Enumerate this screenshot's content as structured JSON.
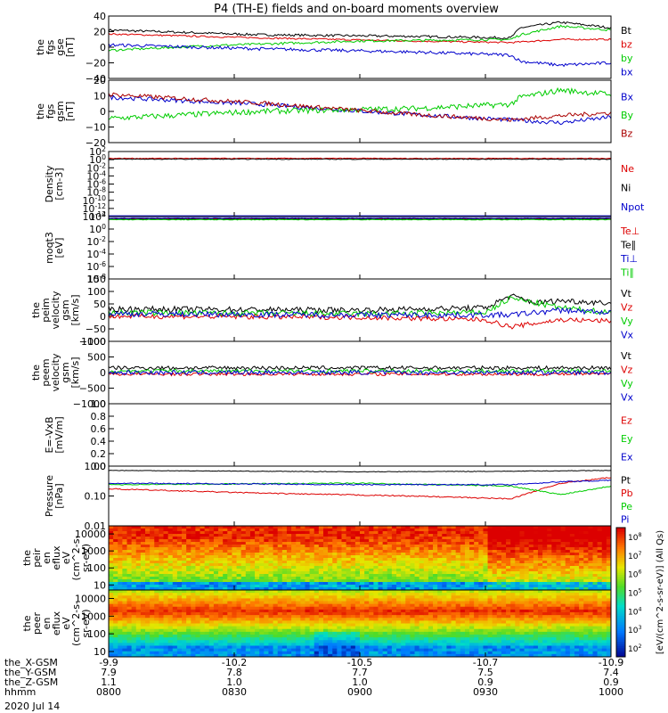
{
  "title": "P4 (TH-E) fields and on-board moments overview",
  "date_label": "2020 Jul 14",
  "colorbar": {
    "label": "[eV/(cm^2-s-sr-eV)] (All Qs)",
    "ticks": [
      "10^8",
      "10^7",
      "10^6",
      "10^5",
      "10^4",
      "10^3",
      "10^2"
    ]
  },
  "x_rows": [
    {
      "name": "the_X-GSM",
      "values": [
        "-9.9",
        "-10.2",
        "-10.5",
        "-10.7",
        "-10.9"
      ]
    },
    {
      "name": "the_Y-GSM",
      "values": [
        "7.9",
        "7.8",
        "7.7",
        "7.5",
        "7.4"
      ]
    },
    {
      "name": "the_Z-GSM",
      "values": [
        "1.1",
        "1.0",
        "1.0",
        "0.9",
        "0.9"
      ]
    },
    {
      "name": "hhmm",
      "values": [
        "0800",
        "0830",
        "0900",
        "0930",
        "1000"
      ]
    }
  ],
  "chart_data": [
    {
      "type": "line",
      "ylabel": [
        "the",
        "fgs",
        "gse",
        "[nT]"
      ],
      "yticks": [
        "40",
        "20",
        "0",
        "−20",
        "−40"
      ],
      "ylim": [
        -40,
        40
      ],
      "series": [
        {
          "name": "Bt",
          "color": "#000000",
          "knots": [
            [
              0,
              22
            ],
            [
              0.3,
              16
            ],
            [
              0.6,
              14
            ],
            [
              0.8,
              12
            ],
            [
              0.82,
              25
            ],
            [
              0.9,
              32
            ],
            [
              1.0,
              25
            ]
          ],
          "noise": 1.5
        },
        {
          "name": "bz",
          "color": "#dd0000",
          "knots": [
            [
              0,
              17
            ],
            [
              0.3,
              12
            ],
            [
              0.6,
              8
            ],
            [
              0.8,
              6
            ],
            [
              0.9,
              10
            ],
            [
              1.0,
              10
            ]
          ],
          "noise": 1
        },
        {
          "name": "by",
          "color": "#00cc00",
          "knots": [
            [
              0,
              -4
            ],
            [
              0.2,
              2
            ],
            [
              0.5,
              8
            ],
            [
              0.8,
              10
            ],
            [
              0.82,
              16
            ],
            [
              0.9,
              27
            ],
            [
              1.0,
              22
            ]
          ],
          "noise": 1.5
        },
        {
          "name": "bx",
          "color": "#0000cc",
          "knots": [
            [
              0,
              3
            ],
            [
              0.3,
              -2
            ],
            [
              0.6,
              -6
            ],
            [
              0.8,
              -10
            ],
            [
              0.82,
              -18
            ],
            [
              0.9,
              -23
            ],
            [
              1.0,
              -20
            ]
          ],
          "noise": 2
        }
      ]
    },
    {
      "type": "line",
      "ylabel": [
        "the",
        "fgs",
        "gsm",
        "[nT]"
      ],
      "yticks": [
        "20",
        "10",
        "0",
        "−10",
        "−20"
      ],
      "ylim": [
        -22,
        22
      ],
      "series": [
        {
          "name": "Bx",
          "color": "#0000cc",
          "knots": [
            [
              0,
              10
            ],
            [
              0.3,
              5
            ],
            [
              0.6,
              -2
            ],
            [
              0.8,
              -6
            ],
            [
              0.9,
              -8
            ],
            [
              1.0,
              -4
            ]
          ],
          "noise": 1.5
        },
        {
          "name": "By",
          "color": "#00cc00",
          "knots": [
            [
              0,
              -5
            ],
            [
              0.3,
              0
            ],
            [
              0.6,
              2
            ],
            [
              0.8,
              5
            ],
            [
              0.82,
              10
            ],
            [
              0.9,
              15
            ],
            [
              1.0,
              12
            ]
          ],
          "noise": 2
        },
        {
          "name": "Bz",
          "color": "#aa0000",
          "knots": [
            [
              0,
              12
            ],
            [
              0.3,
              6
            ],
            [
              0.6,
              -2
            ],
            [
              0.8,
              -6
            ],
            [
              0.9,
              -3
            ],
            [
              1.0,
              -1
            ]
          ],
          "noise": 1.5
        }
      ]
    },
    {
      "type": "line",
      "ylabel": [
        "Density",
        "[cm-3]"
      ],
      "yticks": [
        "10^2",
        "10^0",
        "10^-2",
        "10^-4",
        "10^-6",
        "10^-8",
        "10^-10",
        "10^-12",
        "10^-14"
      ],
      "ylim": [
        -15,
        2
      ],
      "log": true,
      "series": [
        {
          "name": "Ne",
          "color": "#dd0000",
          "knots": [
            [
              0,
              0.2
            ],
            [
              1,
              0.2
            ]
          ],
          "noise": 0.1
        },
        {
          "name": "Ni",
          "color": "#000000",
          "knots": [
            [
              0,
              0
            ],
            [
              1,
              0
            ]
          ],
          "noise": 0.1
        },
        {
          "name": "Npot",
          "color": "#0000cc",
          "knots": [
            [
              0,
              -14.8
            ],
            [
              1,
              -14.8
            ]
          ],
          "noise": 0
        }
      ]
    },
    {
      "type": "line",
      "ylabel": [
        "moqt3",
        "[eV]"
      ],
      "yticks": [
        "10^2",
        "10^0",
        "10^-2",
        "10^-4",
        "10^-6",
        "10^-8"
      ],
      "ylim": [
        -9,
        3
      ],
      "log": true,
      "series": [
        {
          "name": "Te⊥",
          "color": "#dd0000",
          "knots": [
            [
              0,
              2.6
            ],
            [
              1,
              2.6
            ]
          ],
          "noise": 0.05
        },
        {
          "name": "Te∥",
          "color": "#000000",
          "knots": [
            [
              0,
              2.5
            ],
            [
              1,
              2.5
            ]
          ],
          "noise": 0.05
        },
        {
          "name": "Ti⊥",
          "color": "#0000cc",
          "knots": [
            [
              0,
              2.7
            ],
            [
              1,
              2.7
            ]
          ],
          "noise": 0.05
        },
        {
          "name": "Ti∥",
          "color": "#00cc00",
          "knots": [
            [
              0,
              2.4
            ],
            [
              1,
              2.4
            ]
          ],
          "noise": 0.05
        }
      ]
    },
    {
      "type": "line",
      "ylabel": [
        "the",
        "peim",
        "velocity",
        "gsm",
        "[km/s]"
      ],
      "yticks": [
        "150",
        "100",
        "50",
        "0",
        "−50",
        "−100"
      ],
      "ylim": [
        -100,
        160
      ],
      "series": [
        {
          "name": "Vt",
          "color": "#000000",
          "knots": [
            [
              0,
              35
            ],
            [
              0.5,
              30
            ],
            [
              0.75,
              40
            ],
            [
              0.8,
              90
            ],
            [
              0.85,
              60
            ],
            [
              0.9,
              70
            ],
            [
              1.0,
              60
            ]
          ],
          "noise": 12
        },
        {
          "name": "Vz",
          "color": "#dd0000",
          "knots": [
            [
              0,
              5
            ],
            [
              0.5,
              0
            ],
            [
              0.75,
              -10
            ],
            [
              0.8,
              -40
            ],
            [
              0.9,
              -10
            ],
            [
              1.0,
              -15
            ]
          ],
          "noise": 10
        },
        {
          "name": "Vy",
          "color": "#00cc00",
          "knots": [
            [
              0,
              20
            ],
            [
              0.5,
              15
            ],
            [
              0.75,
              20
            ],
            [
              0.8,
              80
            ],
            [
              0.9,
              40
            ],
            [
              1.0,
              20
            ]
          ],
          "noise": 12
        },
        {
          "name": "Vx",
          "color": "#0000cc",
          "knots": [
            [
              0,
              15
            ],
            [
              0.5,
              10
            ],
            [
              0.75,
              10
            ],
            [
              0.8,
              10
            ],
            [
              0.9,
              30
            ],
            [
              1.0,
              20
            ]
          ],
          "noise": 12
        }
      ]
    },
    {
      "type": "line",
      "ylabel": [
        "the",
        "peem",
        "velocity",
        "gsm",
        "[km/s]"
      ],
      "yticks": [
        "1000",
        "500",
        "0",
        "−500",
        "−1000"
      ],
      "ylim": [
        -1000,
        1000
      ],
      "series": [
        {
          "name": "Vt",
          "color": "#000000",
          "knots": [
            [
              0,
              150
            ],
            [
              1,
              150
            ]
          ],
          "noise": 60
        },
        {
          "name": "Vz",
          "color": "#dd0000",
          "knots": [
            [
              0,
              -50
            ],
            [
              1,
              -50
            ]
          ],
          "noise": 50
        },
        {
          "name": "Vy",
          "color": "#00cc00",
          "knots": [
            [
              0,
              50
            ],
            [
              1,
              50
            ]
          ],
          "noise": 60
        },
        {
          "name": "Vx",
          "color": "#0000cc",
          "knots": [
            [
              0,
              0
            ],
            [
              1,
              0
            ]
          ],
          "noise": 70
        }
      ]
    },
    {
      "type": "line",
      "ylabel": [
        "E=-VxB",
        "[mV/m]"
      ],
      "yticks": [
        "1.0",
        "0.8",
        "0.6",
        "0.4",
        "0.2",
        "0.0"
      ],
      "ylim": [
        0,
        1
      ],
      "series": [
        {
          "name": "Ez",
          "color": "#dd0000",
          "knots": []
        },
        {
          "name": "Ey",
          "color": "#00cc00",
          "knots": []
        },
        {
          "name": "Ex",
          "color": "#0000cc",
          "knots": []
        }
      ]
    },
    {
      "type": "line",
      "ylabel": [
        "Pressure",
        "[nPa]"
      ],
      "yticks": [
        "1.00",
        "0.10",
        "0.01"
      ],
      "ylim": [
        -2,
        0.1
      ],
      "log": true,
      "series": [
        {
          "name": "Pt",
          "color": "#000000",
          "knots": [
            [
              0,
              -0.05
            ],
            [
              0.5,
              -0.1
            ],
            [
              0.8,
              -0.08
            ],
            [
              1,
              -0.05
            ]
          ],
          "noise": 0.01
        },
        {
          "name": "Pb",
          "color": "#dd0000",
          "knots": [
            [
              0,
              -0.7
            ],
            [
              0.3,
              -0.85
            ],
            [
              0.6,
              -0.95
            ],
            [
              0.8,
              -1.05
            ],
            [
              0.9,
              -0.5
            ],
            [
              1.0,
              -0.3
            ]
          ],
          "noise": 0.02
        },
        {
          "name": "Pe",
          "color": "#00cc00",
          "knots": [
            [
              0,
              -0.55
            ],
            [
              0.5,
              -0.5
            ],
            [
              0.8,
              -0.6
            ],
            [
              0.9,
              -0.9
            ],
            [
              1.0,
              -0.6
            ]
          ],
          "noise": 0.02
        },
        {
          "name": "Pi",
          "color": "#0000cc",
          "knots": [
            [
              0,
              -0.5
            ],
            [
              0.5,
              -0.55
            ],
            [
              0.8,
              -0.55
            ],
            [
              0.9,
              -0.45
            ],
            [
              1.0,
              -0.4
            ]
          ],
          "noise": 0.02
        }
      ]
    },
    {
      "type": "heatmap",
      "ylabel": [
        "the",
        "peir",
        "en",
        "eflux",
        "eV",
        "(cm^2-s-",
        "sr-eV)"
      ],
      "yticks": [
        "10000",
        "1000",
        "100",
        "10"
      ],
      "ylim": [
        5,
        30000
      ],
      "log": true
    },
    {
      "type": "heatmap",
      "ylabel": [
        "the",
        "peer",
        "en",
        "eflux",
        "eV",
        "(cm^2-s-",
        "sr-eV)"
      ],
      "yticks": [
        "10000",
        "1000",
        "100",
        "10"
      ],
      "ylim": [
        5,
        30000
      ],
      "log": true
    }
  ]
}
